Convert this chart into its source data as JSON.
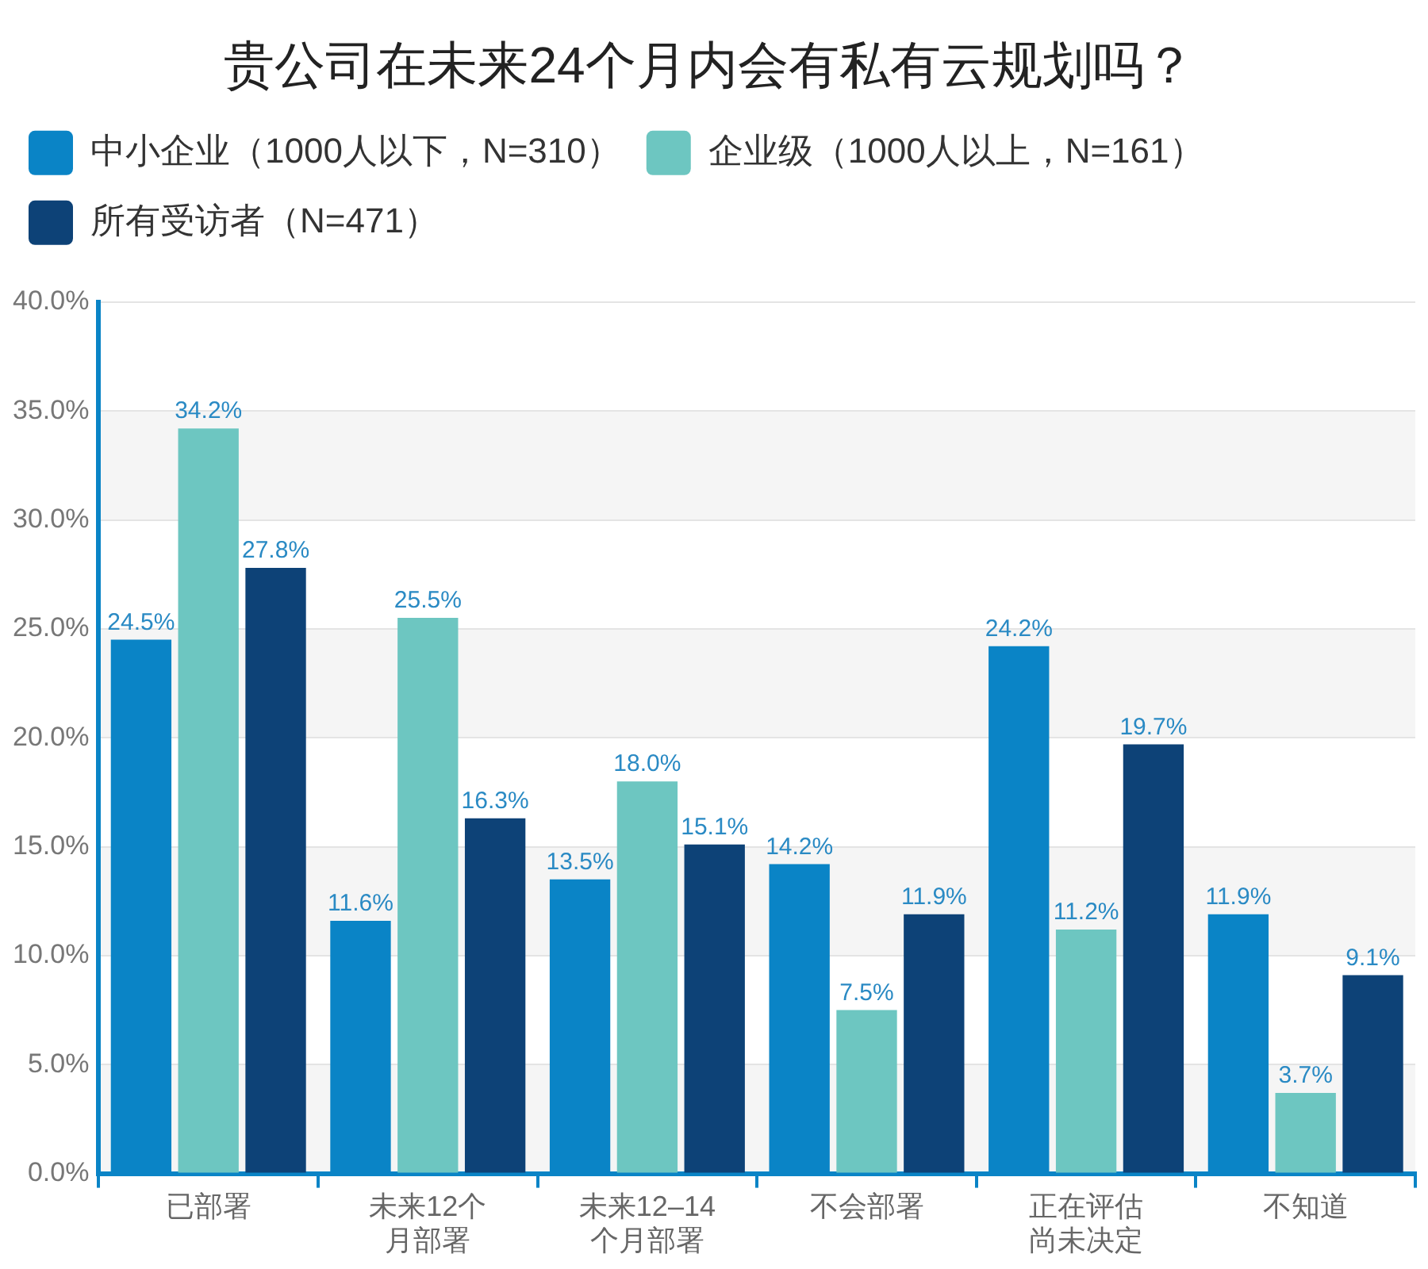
{
  "chart_data": {
    "type": "bar",
    "title": "贵公司在未来24个月内会有私有云规划吗？",
    "categories": [
      "已部署",
      "未来12个月部署",
      "未来12–14个月部署",
      "不会部署",
      "正在评估尚未决定",
      "不知道"
    ],
    "series": [
      {
        "name": "中小企业（1000人以下，N=310）",
        "color": "#0a84c6",
        "values": [
          24.5,
          11.6,
          13.5,
          14.2,
          24.2,
          11.9
        ],
        "value_labels": [
          "24.5%",
          "11.6%",
          "13.5%",
          "14.2%",
          "24.2%",
          "11.9%"
        ]
      },
      {
        "name": "企业级（1000人以上，N=161）",
        "color": "#6dc6c1",
        "values": [
          34.2,
          25.5,
          18.0,
          7.5,
          11.2,
          3.7
        ],
        "value_labels": [
          "34.2%",
          "25.5%",
          "18.0%",
          "7.5%",
          "11.2%",
          "3.7%"
        ]
      },
      {
        "name": "所有受访者（N=471）",
        "color": "#0d4277",
        "values": [
          27.8,
          16.3,
          15.1,
          11.9,
          19.7,
          9.1
        ],
        "value_labels": [
          "27.8%",
          "16.3%",
          "15.1%",
          "11.9%",
          "19.7%",
          "9.1%"
        ]
      }
    ],
    "ylim": [
      0,
      40
    ],
    "yticks": [
      {
        "value": 0,
        "label": "0.0%"
      },
      {
        "value": 5,
        "label": "5.0%"
      },
      {
        "value": 10,
        "label": "10.0%"
      },
      {
        "value": 15,
        "label": "15.0%"
      },
      {
        "value": 20,
        "label": "20.0%"
      },
      {
        "value": 25,
        "label": "25.0%"
      },
      {
        "value": 30,
        "label": "30.0%"
      },
      {
        "value": 35,
        "label": "35.0%"
      },
      {
        "value": 40,
        "label": "40.0%"
      }
    ],
    "grid": "y",
    "legend": "top left"
  }
}
